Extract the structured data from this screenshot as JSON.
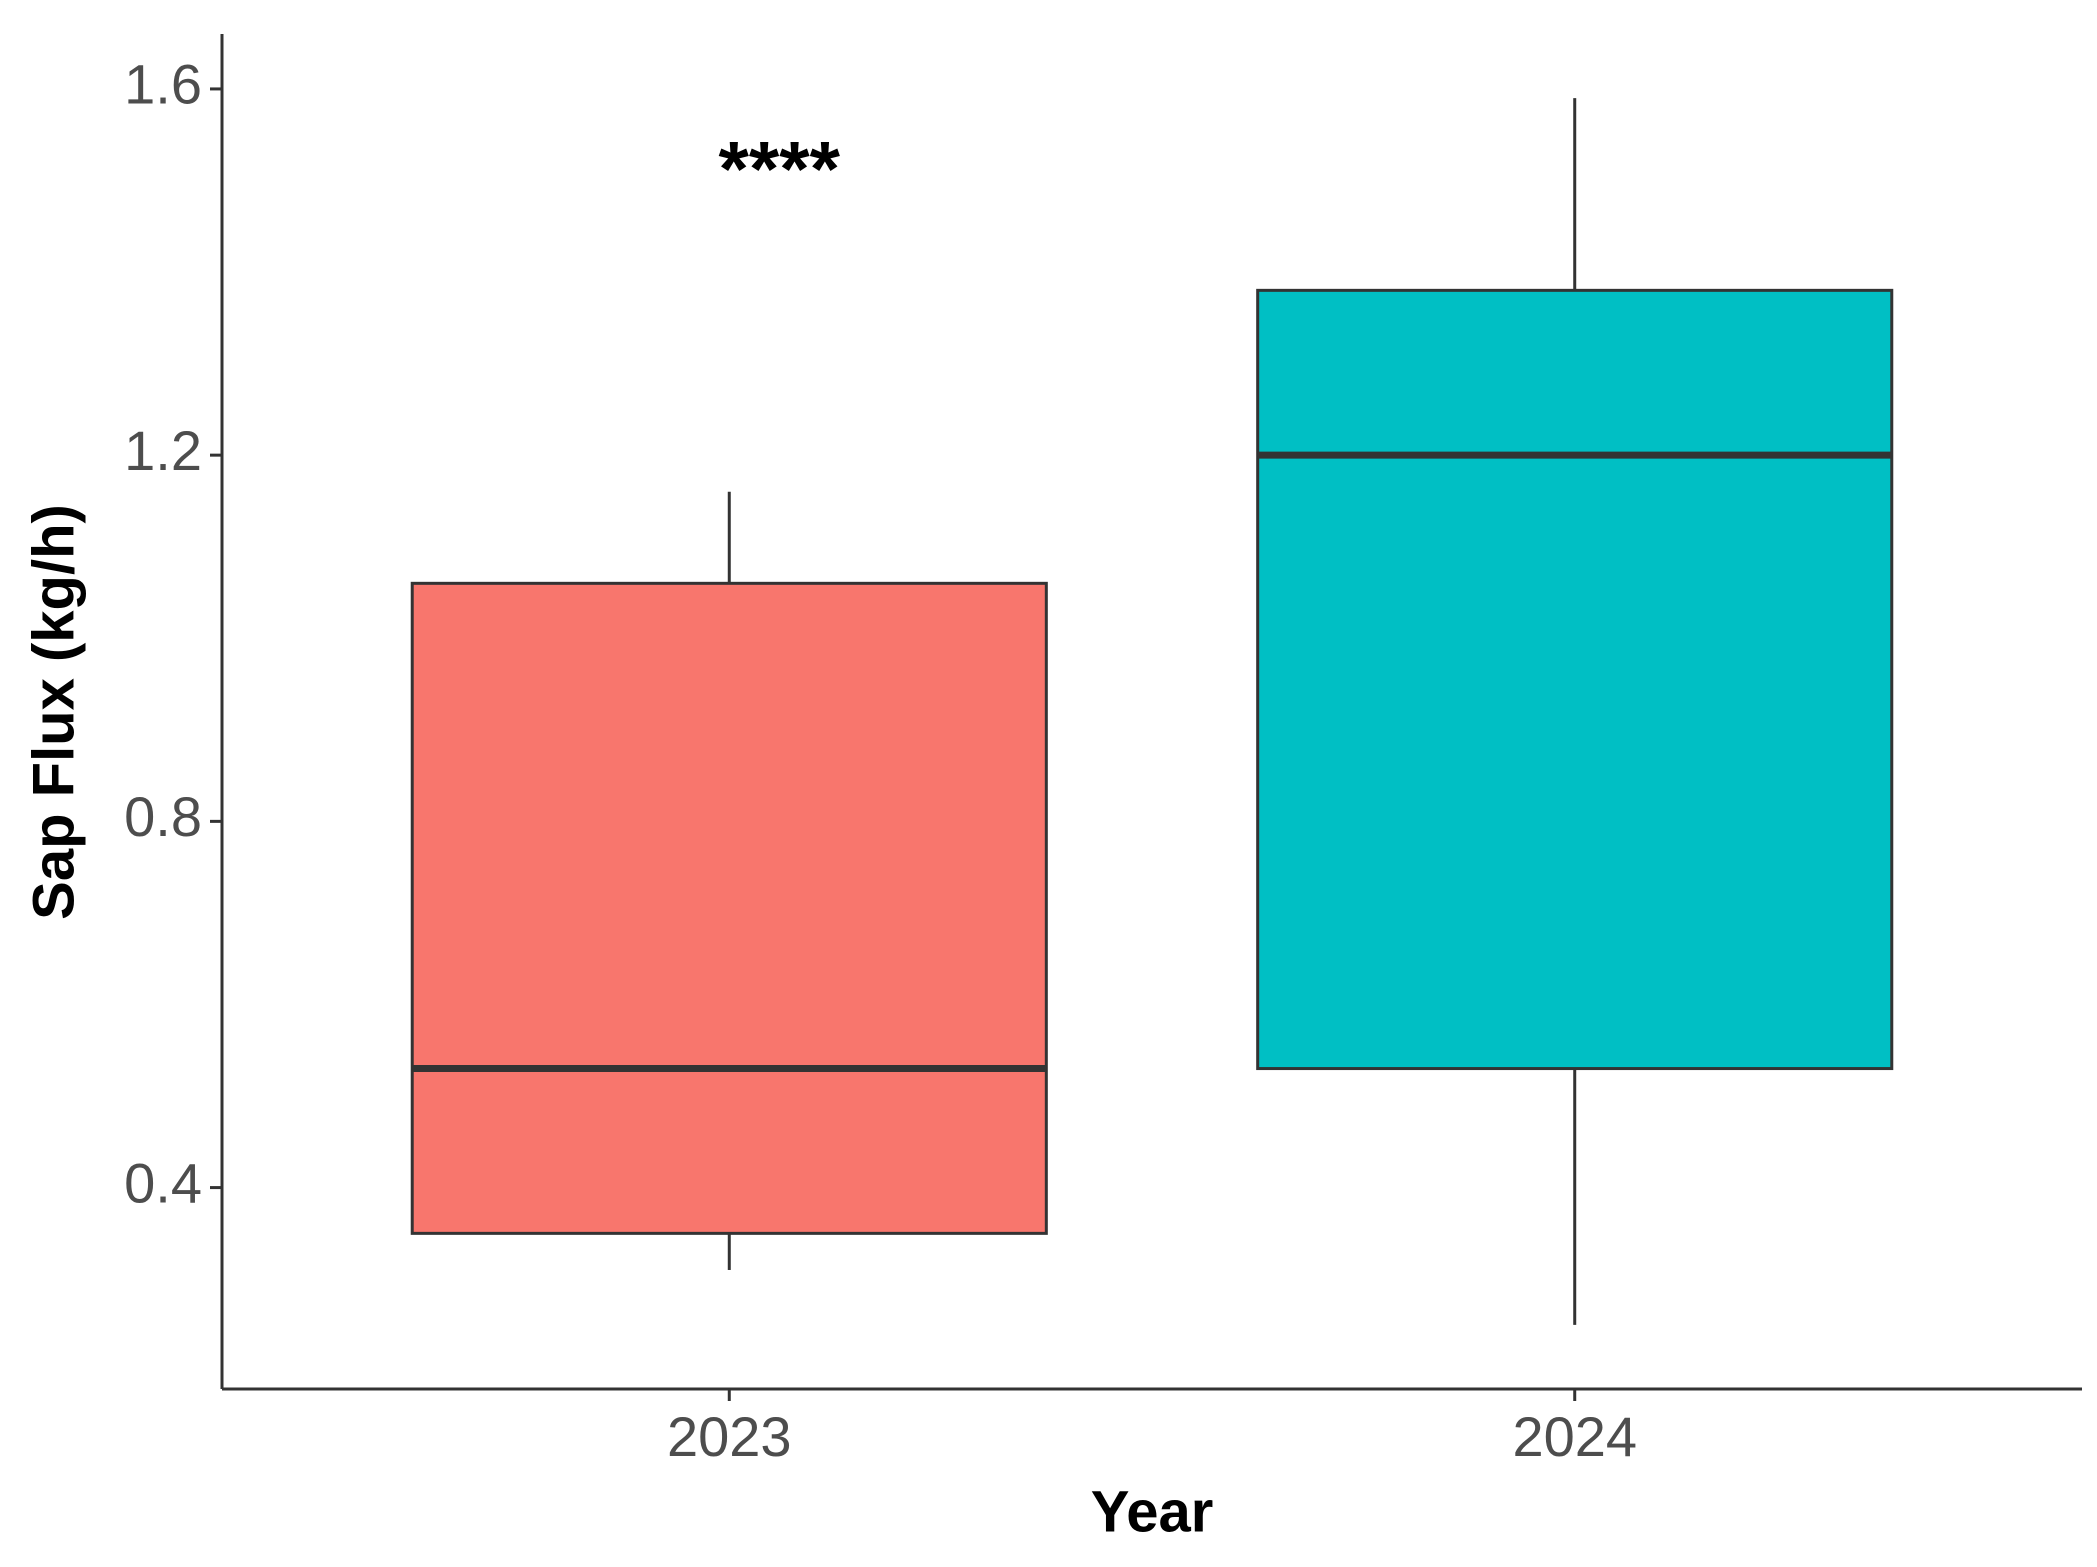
{
  "chart_data": {
    "type": "boxplot",
    "x_label": "Year",
    "y_label": "Sap Flux (kg/h)",
    "categories": [
      "2023",
      "2024"
    ],
    "colors": [
      "#f8766d",
      "#00bfc4"
    ],
    "boxes": [
      {
        "whisker_low": 0.31,
        "q1": 0.35,
        "median": 0.53,
        "q3": 1.06,
        "whisker_high": 1.16
      },
      {
        "whisker_low": 0.25,
        "q1": 0.53,
        "median": 1.2,
        "q3": 1.38,
        "whisker_high": 1.59
      }
    ],
    "annotation": "****",
    "ylim": [
      0.18,
      1.66
    ],
    "yticks": [
      0.4,
      0.8,
      1.2,
      1.6
    ],
    "grid": false
  }
}
